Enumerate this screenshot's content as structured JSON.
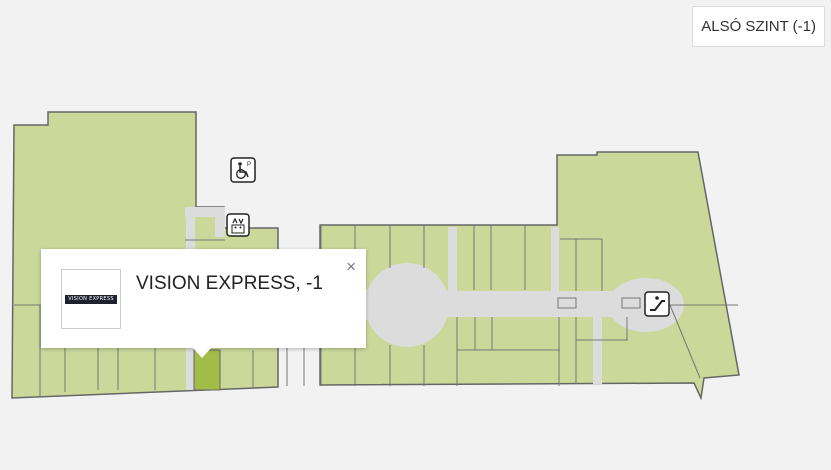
{
  "level": {
    "label": "ALSÓ SZINT (-1)"
  },
  "popup": {
    "title": "VISION EXPRESS, -1",
    "logo_text": "VISION EXPRESS",
    "close_symbol": "×"
  },
  "colors": {
    "background": "#f2f2f2",
    "store": "#cbd89a",
    "store_highlight": "#a1bc48",
    "corridor": "#dcdcdc",
    "outline": "#666666"
  },
  "icons": [
    "accessible-parking-icon",
    "elevator-icon",
    "escalator-icon"
  ]
}
